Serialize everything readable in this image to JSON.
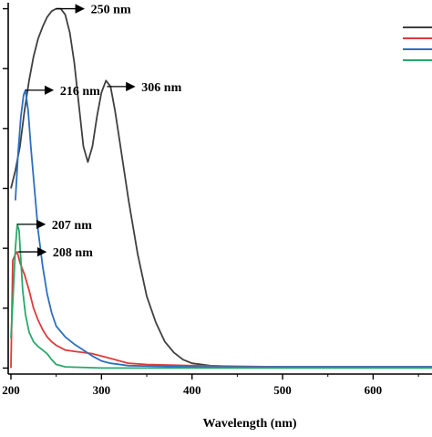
{
  "chart_data": {
    "type": "line",
    "title": "",
    "xlabel": "Wavelength (nm)",
    "ylabel": "",
    "xlim": [
      197,
      665
    ],
    "ylim": [
      -0.05,
      3.05
    ],
    "xticks": [
      200,
      300,
      400,
      500,
      600
    ],
    "yticks": [
      0,
      0.5,
      1.0,
      1.5,
      2.0,
      2.5,
      3.0
    ],
    "grid": false,
    "legend": "top-right",
    "series": [
      {
        "color": "#404040",
        "points": [
          [
            200,
            1.5
          ],
          [
            205,
            1.65
          ],
          [
            210,
            1.85
          ],
          [
            215,
            2.15
          ],
          [
            220,
            2.4
          ],
          [
            225,
            2.6
          ],
          [
            230,
            2.75
          ],
          [
            235,
            2.85
          ],
          [
            240,
            2.93
          ],
          [
            245,
            2.98
          ],
          [
            250,
            3.0
          ],
          [
            255,
            3.0
          ],
          [
            260,
            2.95
          ],
          [
            265,
            2.8
          ],
          [
            270,
            2.55
          ],
          [
            275,
            2.2
          ],
          [
            280,
            1.85
          ],
          [
            285,
            1.72
          ],
          [
            290,
            1.85
          ],
          [
            295,
            2.1
          ],
          [
            300,
            2.3
          ],
          [
            305,
            2.4
          ],
          [
            310,
            2.35
          ],
          [
            315,
            2.15
          ],
          [
            320,
            1.9
          ],
          [
            330,
            1.4
          ],
          [
            340,
            0.95
          ],
          [
            350,
            0.6
          ],
          [
            360,
            0.38
          ],
          [
            370,
            0.22
          ],
          [
            380,
            0.13
          ],
          [
            390,
            0.07
          ],
          [
            400,
            0.04
          ],
          [
            420,
            0.02
          ],
          [
            450,
            0.01
          ],
          [
            500,
            0.01
          ],
          [
            600,
            0.01
          ],
          [
            665,
            0.01
          ]
        ]
      },
      {
        "color": "#e03a3a",
        "points": [
          [
            200,
            0.0
          ],
          [
            202,
            0.9
          ],
          [
            205,
            0.95
          ],
          [
            207,
            0.97
          ],
          [
            210,
            0.88
          ],
          [
            215,
            0.78
          ],
          [
            220,
            0.65
          ],
          [
            225,
            0.5
          ],
          [
            230,
            0.4
          ],
          [
            235,
            0.32
          ],
          [
            240,
            0.26
          ],
          [
            245,
            0.22
          ],
          [
            250,
            0.19
          ],
          [
            255,
            0.17
          ],
          [
            260,
            0.15
          ],
          [
            270,
            0.14
          ],
          [
            280,
            0.13
          ],
          [
            290,
            0.12
          ],
          [
            300,
            0.1
          ],
          [
            310,
            0.08
          ],
          [
            320,
            0.06
          ],
          [
            330,
            0.04
          ],
          [
            350,
            0.03
          ],
          [
            400,
            0.02
          ],
          [
            500,
            0.01
          ],
          [
            665,
            0.01
          ]
        ]
      },
      {
        "color": "#2e6fbf",
        "points": [
          [
            205,
            1.4
          ],
          [
            208,
            1.8
          ],
          [
            211,
            2.1
          ],
          [
            214,
            2.28
          ],
          [
            216,
            2.32
          ],
          [
            219,
            2.15
          ],
          [
            222,
            1.85
          ],
          [
            226,
            1.5
          ],
          [
            230,
            1.15
          ],
          [
            235,
            0.85
          ],
          [
            240,
            0.62
          ],
          [
            245,
            0.46
          ],
          [
            250,
            0.35
          ],
          [
            260,
            0.26
          ],
          [
            270,
            0.2
          ],
          [
            280,
            0.15
          ],
          [
            290,
            0.1
          ],
          [
            300,
            0.06
          ],
          [
            310,
            0.04
          ],
          [
            330,
            0.02
          ],
          [
            400,
            0.01
          ],
          [
            665,
            0.01
          ]
        ]
      },
      {
        "color": "#2aa86a",
        "points": [
          [
            200,
            0.25
          ],
          [
            203,
            0.7
          ],
          [
            205,
            1.0
          ],
          [
            207,
            1.2
          ],
          [
            209,
            1.15
          ],
          [
            211,
            0.9
          ],
          [
            213,
            0.65
          ],
          [
            216,
            0.45
          ],
          [
            220,
            0.3
          ],
          [
            225,
            0.22
          ],
          [
            230,
            0.18
          ],
          [
            235,
            0.15
          ],
          [
            240,
            0.12
          ],
          [
            245,
            0.07
          ],
          [
            250,
            0.03
          ],
          [
            260,
            0.01
          ],
          [
            300,
            0.0
          ],
          [
            665,
            0.0
          ]
        ]
      }
    ],
    "annotations": [
      {
        "text": "250 nm",
        "x": 250,
        "y": 3.0
      },
      {
        "text": "216 nm",
        "x": 216,
        "y": 2.32
      },
      {
        "text": "306 nm",
        "x": 306,
        "y": 2.35
      },
      {
        "text": "207 nm",
        "x": 207,
        "y": 1.2
      },
      {
        "text": "208 nm",
        "x": 208,
        "y": 0.97
      }
    ]
  }
}
